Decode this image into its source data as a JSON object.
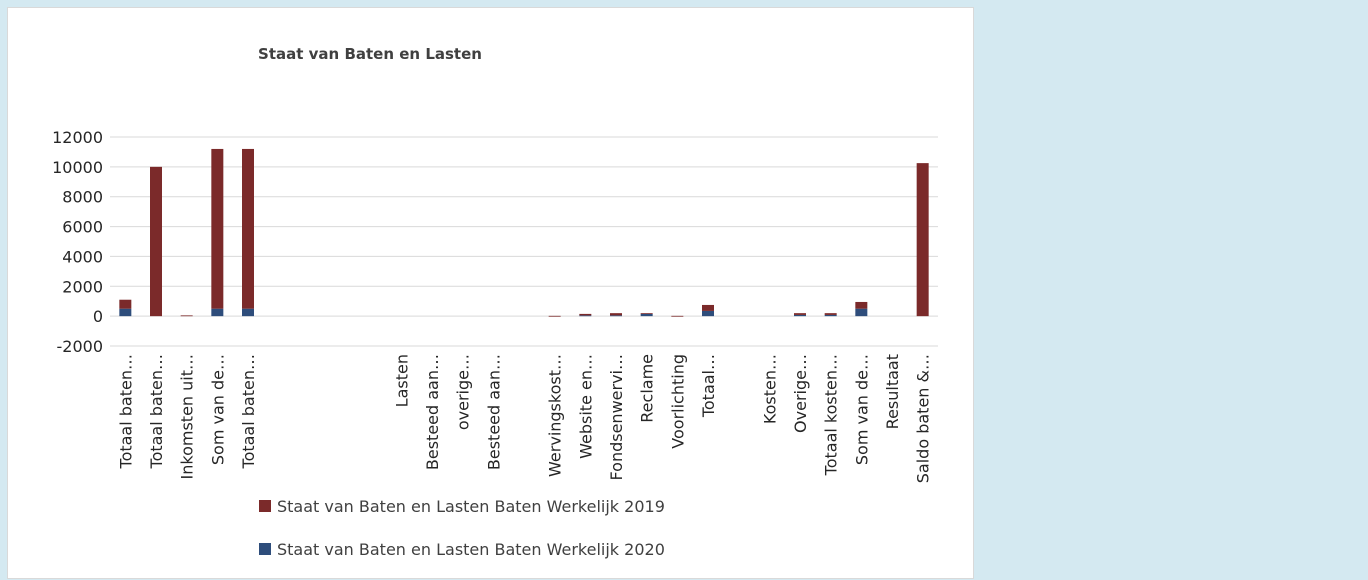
{
  "chart_data": {
    "type": "bar",
    "stacked": true,
    "title": "Staat van Baten en Lasten",
    "xlabel": "",
    "ylabel": "",
    "ylim": [
      -2000,
      12000
    ],
    "yticks": [
      -2000,
      0,
      2000,
      4000,
      6000,
      8000,
      10000,
      12000
    ],
    "grid": true,
    "legend_position": "bottom",
    "categories": [
      "Totaal baten…",
      "Totaal baten…",
      "Inkomsten uit…",
      "Som van de…",
      "Totaal baten…",
      "",
      "",
      "",
      "",
      "Lasten",
      "Besteed aan…",
      "overige…",
      "Besteed aan…",
      "",
      "Wervingskost…",
      "Website en…",
      "Fondsenwervi…",
      "Reclame",
      "Voorlichting",
      "Totaal…",
      "",
      "Kosten…",
      "Overige…",
      "Totaal kosten…",
      "Som van de…",
      "Resultaat",
      "Saldo baten &…"
    ],
    "series": [
      {
        "name": "Staat van Baten en Lasten Baten Werkelijk 2020",
        "color": "#2e4d7b",
        "values": [
          500,
          0,
          0,
          500,
          500,
          0,
          0,
          0,
          0,
          0,
          0,
          0,
          0,
          0,
          0,
          50,
          50,
          150,
          0,
          350,
          0,
          0,
          80,
          80,
          500,
          0,
          0
        ]
      },
      {
        "name": "Staat van Baten en Lasten Baten Werkelijk 2019",
        "color": "#7b2a2a",
        "values": [
          600,
          10000,
          50,
          10700,
          10700,
          0,
          0,
          0,
          0,
          0,
          0,
          0,
          0,
          0,
          20,
          100,
          150,
          50,
          20,
          400,
          0,
          0,
          120,
          120,
          450,
          0,
          10250
        ]
      }
    ]
  }
}
